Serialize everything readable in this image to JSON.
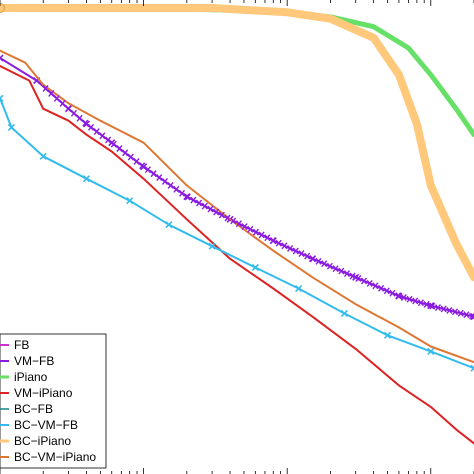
{
  "chart_data": {
    "type": "line",
    "xscale": "log",
    "yscale": "log",
    "legend_placement": "bottom-left",
    "series": [
      {
        "name": "FB",
        "color": "#cc33cc",
        "marker": "none",
        "width": 2,
        "points": []
      },
      {
        "name": "VM−FB",
        "color": "#8a1be0",
        "marker": "x",
        "width": 2,
        "points": [
          [
            1,
            0.55
          ],
          [
            1.8,
            0.42
          ],
          [
            3,
            0.3
          ],
          [
            4,
            0.25
          ],
          [
            6,
            0.2
          ],
          [
            10,
            0.15
          ],
          [
            20,
            0.105
          ],
          [
            40,
            0.08
          ],
          [
            80,
            0.062
          ],
          [
            150,
            0.05
          ],
          [
            300,
            0.04
          ],
          [
            600,
            0.032
          ],
          [
            1000,
            0.0285
          ],
          [
            2000,
            0.025
          ]
        ]
      },
      {
        "name": "iPiano",
        "color": "#66e066",
        "marker": "none",
        "width": 5,
        "points": [
          [
            1,
            1.0
          ],
          [
            10,
            1.0
          ],
          [
            30,
            0.98
          ],
          [
            100,
            0.95
          ],
          [
            200,
            0.9
          ],
          [
            400,
            0.8
          ],
          [
            700,
            0.62
          ],
          [
            1000,
            0.45
          ],
          [
            1500,
            0.3
          ],
          [
            2000,
            0.22
          ]
        ]
      },
      {
        "name": "VM−iPiano",
        "color": "#dd2222",
        "marker": "none",
        "width": 2,
        "points": [
          [
            1,
            0.5
          ],
          [
            1.6,
            0.42
          ],
          [
            2,
            0.3
          ],
          [
            3,
            0.26
          ],
          [
            4,
            0.22
          ],
          [
            6,
            0.18
          ],
          [
            10,
            0.13
          ],
          [
            20,
            0.08
          ],
          [
            40,
            0.05
          ],
          [
            80,
            0.035
          ],
          [
            150,
            0.025
          ],
          [
            300,
            0.017
          ],
          [
            600,
            0.011
          ],
          [
            1000,
            0.0085
          ],
          [
            1500,
            0.0065
          ],
          [
            2000,
            0.0055
          ]
        ]
      },
      {
        "name": "BC−FB",
        "color": "#118888",
        "marker": "none",
        "width": 1.5,
        "points": []
      },
      {
        "name": "BC−VM−FB",
        "color": "#33bbee",
        "marker": "x",
        "width": 2,
        "points": [
          [
            1,
            0.34
          ],
          [
            1.2,
            0.24
          ],
          [
            2,
            0.17
          ],
          [
            4,
            0.13
          ],
          [
            8,
            0.1
          ],
          [
            15,
            0.075
          ],
          [
            30,
            0.058
          ],
          [
            60,
            0.045
          ],
          [
            120,
            0.035
          ],
          [
            250,
            0.026
          ],
          [
            500,
            0.02
          ],
          [
            1000,
            0.0165
          ],
          [
            2000,
            0.0135
          ]
        ]
      },
      {
        "name": "BC−iPiano",
        "color": "#ffc87a",
        "marker": "o",
        "width": 8,
        "points": [
          [
            1,
            1.0
          ],
          [
            30,
            1.0
          ],
          [
            100,
            0.95
          ],
          [
            200,
            0.88
          ],
          [
            400,
            0.7
          ],
          [
            600,
            0.45
          ],
          [
            800,
            0.25
          ],
          [
            1000,
            0.12
          ],
          [
            1500,
            0.06
          ],
          [
            2000,
            0.04
          ]
        ]
      },
      {
        "name": "BC−VM−iPiano",
        "color": "#dd7733",
        "marker": "none",
        "width": 2,
        "points": [
          [
            1,
            0.6
          ],
          [
            1.5,
            0.52
          ],
          [
            2,
            0.4
          ],
          [
            3,
            0.32
          ],
          [
            5,
            0.26
          ],
          [
            10,
            0.2
          ],
          [
            20,
            0.12
          ],
          [
            40,
            0.08
          ],
          [
            80,
            0.055
          ],
          [
            150,
            0.04
          ],
          [
            300,
            0.029
          ],
          [
            600,
            0.022
          ],
          [
            1000,
            0.0175
          ],
          [
            2000,
            0.0145
          ]
        ]
      }
    ]
  }
}
